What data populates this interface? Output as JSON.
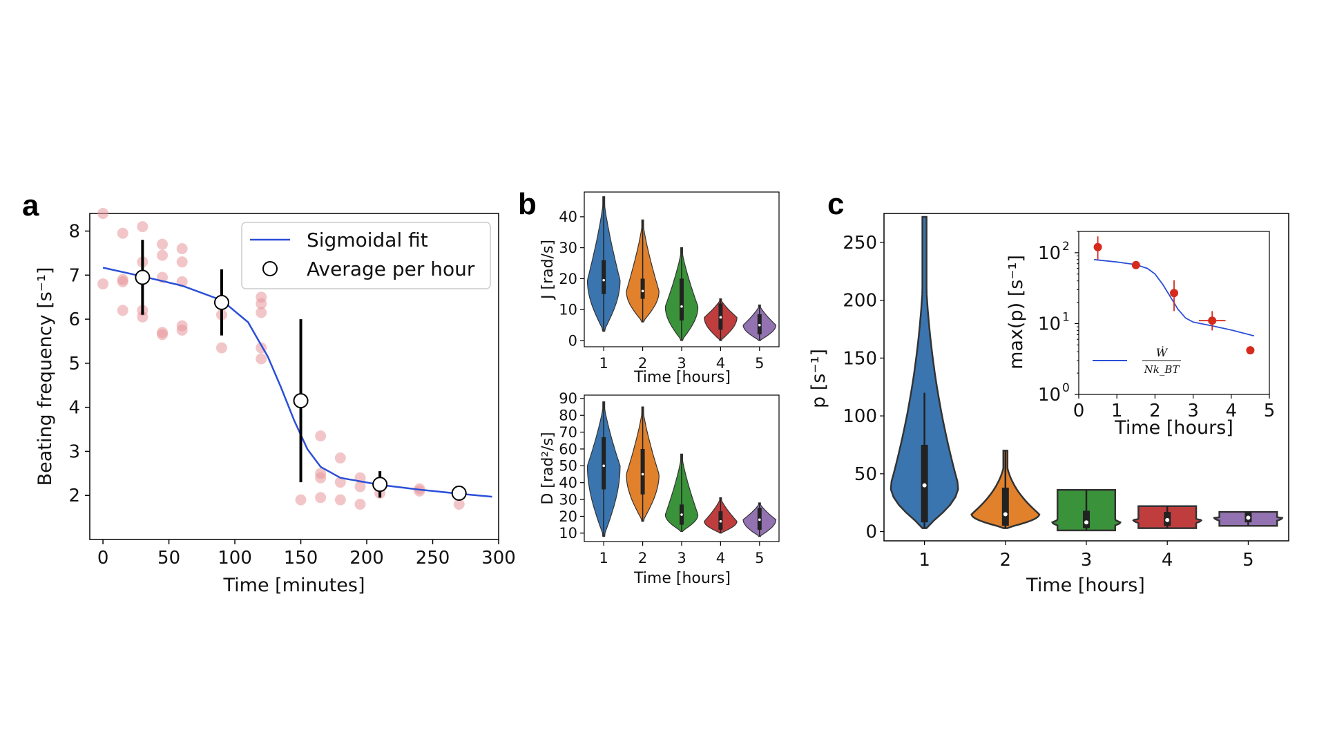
{
  "chart_data": [
    {
      "panel": "a",
      "type": "scatter",
      "xlabel": "Time [minutes]",
      "ylabel": "Beating frequency [s⁻¹]",
      "xlim": [
        -10,
        300
      ],
      "ylim": [
        1,
        8.4
      ],
      "xticks": [
        0,
        50,
        100,
        150,
        200,
        250,
        300
      ],
      "yticks": [
        2,
        3,
        4,
        5,
        6,
        7,
        8
      ],
      "raw_points": [
        [
          0,
          8.4
        ],
        [
          0,
          6.8
        ],
        [
          15,
          7.95
        ],
        [
          15,
          6.9
        ],
        [
          15,
          6.85
        ],
        [
          15,
          6.2
        ],
        [
          30,
          8.1
        ],
        [
          30,
          7.3
        ],
        [
          30,
          6.2
        ],
        [
          30,
          6.05
        ],
        [
          45,
          7.7
        ],
        [
          45,
          7.45
        ],
        [
          45,
          6.95
        ],
        [
          45,
          5.7
        ],
        [
          45,
          5.65
        ],
        [
          60,
          7.6
        ],
        [
          60,
          7.3
        ],
        [
          60,
          6.85
        ],
        [
          60,
          5.85
        ],
        [
          60,
          5.75
        ],
        [
          90,
          6.1
        ],
        [
          90,
          5.35
        ],
        [
          120,
          6.5
        ],
        [
          120,
          6.35
        ],
        [
          120,
          6.15
        ],
        [
          120,
          5.35
        ],
        [
          120,
          5.1
        ],
        [
          150,
          1.9
        ],
        [
          165,
          3.35
        ],
        [
          165,
          2.5
        ],
        [
          165,
          2.4
        ],
        [
          165,
          1.95
        ],
        [
          180,
          2.85
        ],
        [
          180,
          2.3
        ],
        [
          180,
          1.9
        ],
        [
          195,
          2.4
        ],
        [
          195,
          2.2
        ],
        [
          195,
          1.8
        ],
        [
          210,
          2.05
        ],
        [
          240,
          2.15
        ],
        [
          240,
          2.1
        ],
        [
          270,
          1.8
        ]
      ],
      "averages": [
        {
          "x": 30,
          "y": 6.95,
          "err": 0.85
        },
        {
          "x": 90,
          "y": 6.38,
          "err": 0.75
        },
        {
          "x": 150,
          "y": 4.15,
          "err": 1.85
        },
        {
          "x": 210,
          "y": 2.25,
          "err": 0.3
        },
        {
          "x": 270,
          "y": 2.05,
          "err": 0.05
        }
      ],
      "fit_curve": [
        [
          0,
          7.17
        ],
        [
          30,
          6.97
        ],
        [
          60,
          6.76
        ],
        [
          90,
          6.43
        ],
        [
          110,
          5.93
        ],
        [
          125,
          5.15
        ],
        [
          135,
          4.45
        ],
        [
          145,
          3.7
        ],
        [
          155,
          3.05
        ],
        [
          165,
          2.65
        ],
        [
          180,
          2.4
        ],
        [
          210,
          2.24
        ],
        [
          240,
          2.13
        ],
        [
          270,
          2.04
        ],
        [
          295,
          1.97
        ]
      ],
      "legend": [
        "Sigmoidal fit",
        "Average per hour"
      ],
      "colors": {
        "fit": "#2b4fd8",
        "raw": "#e8989a",
        "err": "#000000"
      }
    },
    {
      "panel": "b-top",
      "type": "violin",
      "xlabel": "Time  [hours]",
      "ylabel": "J  [rad/s]",
      "categories": [
        "1",
        "2",
        "3",
        "4",
        "5"
      ],
      "ylim": [
        -2,
        48
      ],
      "yticks": [
        0,
        10,
        20,
        30,
        40
      ],
      "series": [
        {
          "min": 3,
          "max": 46.5,
          "q1": 15,
          "q3": 26,
          "median": 19.5
        },
        {
          "min": 6,
          "max": 39,
          "q1": 13.5,
          "q3": 20,
          "median": 16
        },
        {
          "min": 0,
          "max": 30,
          "q1": 6.5,
          "q3": 20,
          "median": 11
        },
        {
          "min": 0,
          "max": 13.5,
          "q1": 3.5,
          "q3": 12,
          "median": 7.5
        },
        {
          "min": 0,
          "max": 11.5,
          "q1": 2,
          "q3": 8.5,
          "median": 5
        }
      ]
    },
    {
      "panel": "b-bottom",
      "type": "violin",
      "xlabel": "Time  [hours]",
      "ylabel": "D  [rad²/s]",
      "categories": [
        "1",
        "2",
        "3",
        "4",
        "5"
      ],
      "ylim": [
        5,
        92
      ],
      "yticks": [
        10,
        20,
        30,
        40,
        50,
        60,
        70,
        80,
        90
      ],
      "series": [
        {
          "min": 8,
          "max": 88,
          "q1": 36,
          "q3": 67,
          "median": 50
        },
        {
          "min": 17,
          "max": 85,
          "q1": 33,
          "q3": 60,
          "median": 45
        },
        {
          "min": 11,
          "max": 57,
          "q1": 15,
          "q3": 27,
          "median": 21
        },
        {
          "min": 10,
          "max": 31,
          "q1": 12,
          "q3": 23,
          "median": 17
        },
        {
          "min": 8,
          "max": 28,
          "q1": 12,
          "q3": 25,
          "median": 18
        }
      ]
    },
    {
      "panel": "c",
      "type": "violin",
      "xlabel": "Time  [hours]",
      "ylabel": "p  [s⁻¹]",
      "categories": [
        "1",
        "2",
        "3",
        "4",
        "5"
      ],
      "ylim": [
        -8,
        275
      ],
      "yticks": [
        0,
        50,
        100,
        150,
        200,
        250
      ],
      "series": [
        {
          "min": 3,
          "max": 272,
          "q1": 8,
          "q3": 75,
          "median": 40,
          "whisker_hi": 120
        },
        {
          "min": 3,
          "max": 70,
          "q1": 5,
          "q3": 38,
          "median": 15
        },
        {
          "min": 1,
          "max": 36,
          "q1": 3,
          "q3": 18,
          "median": 8
        },
        {
          "min": 3,
          "max": 22,
          "q1": 5,
          "q3": 17,
          "median": 10
        },
        {
          "min": 5,
          "max": 17,
          "q1": 8,
          "q3": 17,
          "median": 12
        }
      ]
    },
    {
      "panel": "c-inset",
      "type": "scatter",
      "xlabel": "Time  [hours]",
      "ylabel": "max(p)  [s⁻¹]",
      "yscale": "log",
      "xlim": [
        0,
        5
      ],
      "ylim": [
        1,
        200
      ],
      "xticks": [
        0,
        1,
        2,
        3,
        4,
        5
      ],
      "yticks_exp": [
        0,
        1,
        2
      ],
      "points": [
        {
          "x": 0.5,
          "y": 120,
          "xerr": 0,
          "yerr_lo": 40,
          "yerr_hi": 50
        },
        {
          "x": 1.5,
          "y": 67,
          "xerr": 0,
          "yerr_lo": 0,
          "yerr_hi": 0
        },
        {
          "x": 2.5,
          "y": 27,
          "xerr": 0,
          "yerr_lo": 12,
          "yerr_hi": 14
        },
        {
          "x": 3.5,
          "y": 11,
          "xerr": 0.35,
          "yerr_lo": 3,
          "yerr_hi": 4
        },
        {
          "x": 4.5,
          "y": 4.2,
          "xerr": 0,
          "yerr_lo": 0,
          "yerr_hi": 0
        }
      ],
      "curve": [
        [
          0.4,
          80
        ],
        [
          1.0,
          74
        ],
        [
          1.5,
          68
        ],
        [
          1.8,
          60
        ],
        [
          2.0,
          50
        ],
        [
          2.2,
          36
        ],
        [
          2.4,
          24
        ],
        [
          2.6,
          16
        ],
        [
          2.8,
          12
        ],
        [
          3.0,
          10.5
        ],
        [
          3.5,
          9.3
        ],
        [
          4.0,
          8.1
        ],
        [
          4.6,
          6.7
        ]
      ],
      "legend": "Ẇ / N k_B T",
      "colors": {
        "points": "#d62a1c",
        "curve": "#2b4fd8"
      }
    }
  ],
  "panel_letters": {
    "a": "a",
    "b": "b",
    "c": "c"
  },
  "texts": {
    "a_ylabel": "Beating frequency [s⁻¹]",
    "a_xlabel": "Time [minutes]",
    "a_legend_fit": "Sigmoidal fit",
    "a_legend_avg": "Average per hour",
    "b_top_ylabel": "J  [rad/s]",
    "b_xlabel": "Time  [hours]",
    "b_bottom_ylabel": "D  [rad²/s]",
    "c_ylabel": "p  [s⁻¹]",
    "c_xlabel": "Time  [hours]",
    "inset_ylabel": "max(p)  [s⁻¹]",
    "inset_xlabel": "Time  [hours]",
    "inset_legend_num": "Ẇ",
    "inset_legend_den": "Nk_BT"
  },
  "violin_colors": [
    "#3a75b0",
    "#e1812c",
    "#3a923a",
    "#c03d3e",
    "#9372b2"
  ]
}
